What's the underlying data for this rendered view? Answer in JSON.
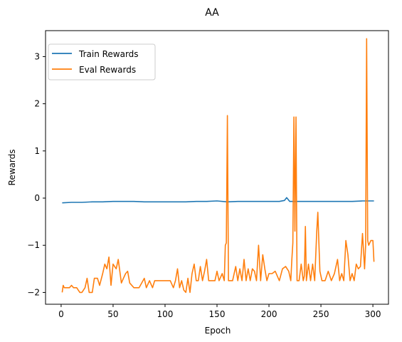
{
  "chart_data": {
    "type": "line",
    "title": "AA",
    "xlabel": "Epoch",
    "ylabel": "Rewards",
    "xlim": [
      -15,
      315
    ],
    "ylim": [
      -2.25,
      3.55
    ],
    "xticks": [
      0,
      50,
      100,
      150,
      200,
      250,
      300
    ],
    "yticks": [
      -2,
      -1,
      0,
      1,
      2,
      3
    ],
    "grid": false,
    "legend_position": "top-left",
    "series": [
      {
        "name": "Train Rewards",
        "color": "#1f77b4",
        "x": [
          1,
          10,
          20,
          30,
          40,
          50,
          60,
          70,
          80,
          90,
          100,
          110,
          120,
          130,
          140,
          150,
          160,
          170,
          180,
          190,
          200,
          210,
          215,
          217,
          220,
          230,
          240,
          250,
          260,
          270,
          280,
          290,
          300,
          301
        ],
        "y": [
          -0.1,
          -0.09,
          -0.09,
          -0.08,
          -0.08,
          -0.07,
          -0.07,
          -0.07,
          -0.08,
          -0.08,
          -0.08,
          -0.08,
          -0.08,
          -0.07,
          -0.07,
          -0.06,
          -0.08,
          -0.07,
          -0.07,
          -0.07,
          -0.07,
          -0.07,
          -0.05,
          0.01,
          -0.07,
          -0.07,
          -0.07,
          -0.07,
          -0.07,
          -0.07,
          -0.07,
          -0.06,
          -0.06,
          -0.06
        ]
      },
      {
        "name": "Eval Rewards",
        "color": "#ff7f0e",
        "x": [
          1,
          2,
          3,
          5,
          8,
          10,
          12,
          15,
          18,
          20,
          23,
          25,
          27,
          30,
          32,
          35,
          37,
          40,
          42,
          44,
          46,
          48,
          50,
          53,
          55,
          58,
          60,
          62,
          64,
          66,
          70,
          75,
          80,
          82,
          85,
          88,
          90,
          95,
          100,
          105,
          108,
          110,
          112,
          114,
          116,
          118,
          120,
          122,
          124,
          126,
          128,
          130,
          132,
          134,
          136,
          138,
          140,
          142,
          145,
          148,
          150,
          152,
          155,
          157,
          158,
          159,
          160,
          161,
          163,
          165,
          168,
          170,
          172,
          174,
          176,
          178,
          180,
          182,
          184,
          186,
          188,
          190,
          192,
          194,
          196,
          198,
          200,
          203,
          206,
          210,
          213,
          216,
          219,
          221,
          222,
          223,
          224,
          225,
          226,
          227,
          229,
          231,
          233,
          234,
          235,
          236,
          238,
          240,
          242,
          244,
          246,
          247,
          249,
          251,
          254,
          257,
          260,
          263,
          266,
          268,
          270,
          272,
          274,
          276,
          278,
          280,
          282,
          284,
          286,
          288,
          290,
          292,
          293,
          294,
          295,
          296,
          298,
          300,
          301
        ],
        "y": [
          -2.0,
          -1.85,
          -1.9,
          -1.9,
          -1.9,
          -1.85,
          -1.9,
          -1.9,
          -2.0,
          -2.0,
          -1.9,
          -1.7,
          -2.0,
          -2.0,
          -1.7,
          -1.7,
          -1.85,
          -1.6,
          -1.4,
          -1.5,
          -1.25,
          -1.85,
          -1.4,
          -1.5,
          -1.3,
          -1.8,
          -1.7,
          -1.6,
          -1.55,
          -1.8,
          -1.9,
          -1.9,
          -1.7,
          -1.9,
          -1.75,
          -1.9,
          -1.75,
          -1.75,
          -1.75,
          -1.75,
          -1.9,
          -1.75,
          -1.5,
          -1.9,
          -1.75,
          -1.95,
          -2.0,
          -1.7,
          -2.0,
          -1.6,
          -1.4,
          -1.75,
          -1.75,
          -1.45,
          -1.75,
          -1.55,
          -1.3,
          -1.75,
          -1.75,
          -1.75,
          -1.55,
          -1.75,
          -1.6,
          -1.75,
          -1.0,
          -0.95,
          1.75,
          -1.75,
          -1.75,
          -1.75,
          -1.45,
          -1.75,
          -1.5,
          -1.75,
          -1.3,
          -1.75,
          -1.5,
          -1.75,
          -1.5,
          -1.55,
          -1.75,
          -1.0,
          -1.75,
          -1.2,
          -1.5,
          -1.75,
          -1.6,
          -1.6,
          -1.55,
          -1.75,
          -1.5,
          -1.45,
          -1.55,
          -1.75,
          -1.3,
          -0.95,
          1.72,
          -0.7,
          1.72,
          -1.75,
          -1.75,
          -1.4,
          -1.75,
          -1.65,
          -0.6,
          -1.75,
          -1.4,
          -1.75,
          -1.4,
          -1.75,
          -0.7,
          -0.3,
          -1.55,
          -1.75,
          -1.75,
          -1.55,
          -1.75,
          -1.6,
          -1.3,
          -1.75,
          -1.6,
          -1.75,
          -0.9,
          -1.2,
          -1.75,
          -1.6,
          -1.75,
          -1.4,
          -1.5,
          -1.45,
          -0.75,
          -1.5,
          -1.0,
          3.38,
          -0.9,
          -1.0,
          -0.9,
          -0.9,
          -1.35
        ]
      }
    ]
  }
}
